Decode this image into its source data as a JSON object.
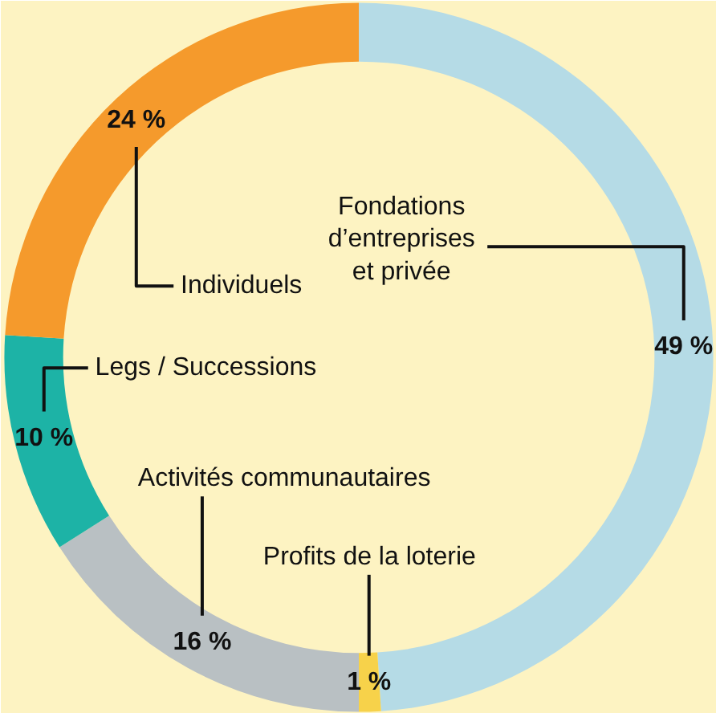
{
  "chart_data": {
    "type": "donut",
    "categories": [
      "Fondations\nd’entreprises\net privée",
      "Profits de la loterie",
      "Activités communautaires",
      "Legs / Successions",
      "Individuels"
    ],
    "values": [
      49,
      1,
      16,
      10,
      24
    ],
    "colors": [
      "#b5dbe6",
      "#f7d24a",
      "#b9c0c3",
      "#1db3a6",
      "#f59a2c"
    ],
    "value_labels": [
      "49 %",
      "1 %",
      "16 %",
      "10 %",
      "24 %"
    ]
  }
}
